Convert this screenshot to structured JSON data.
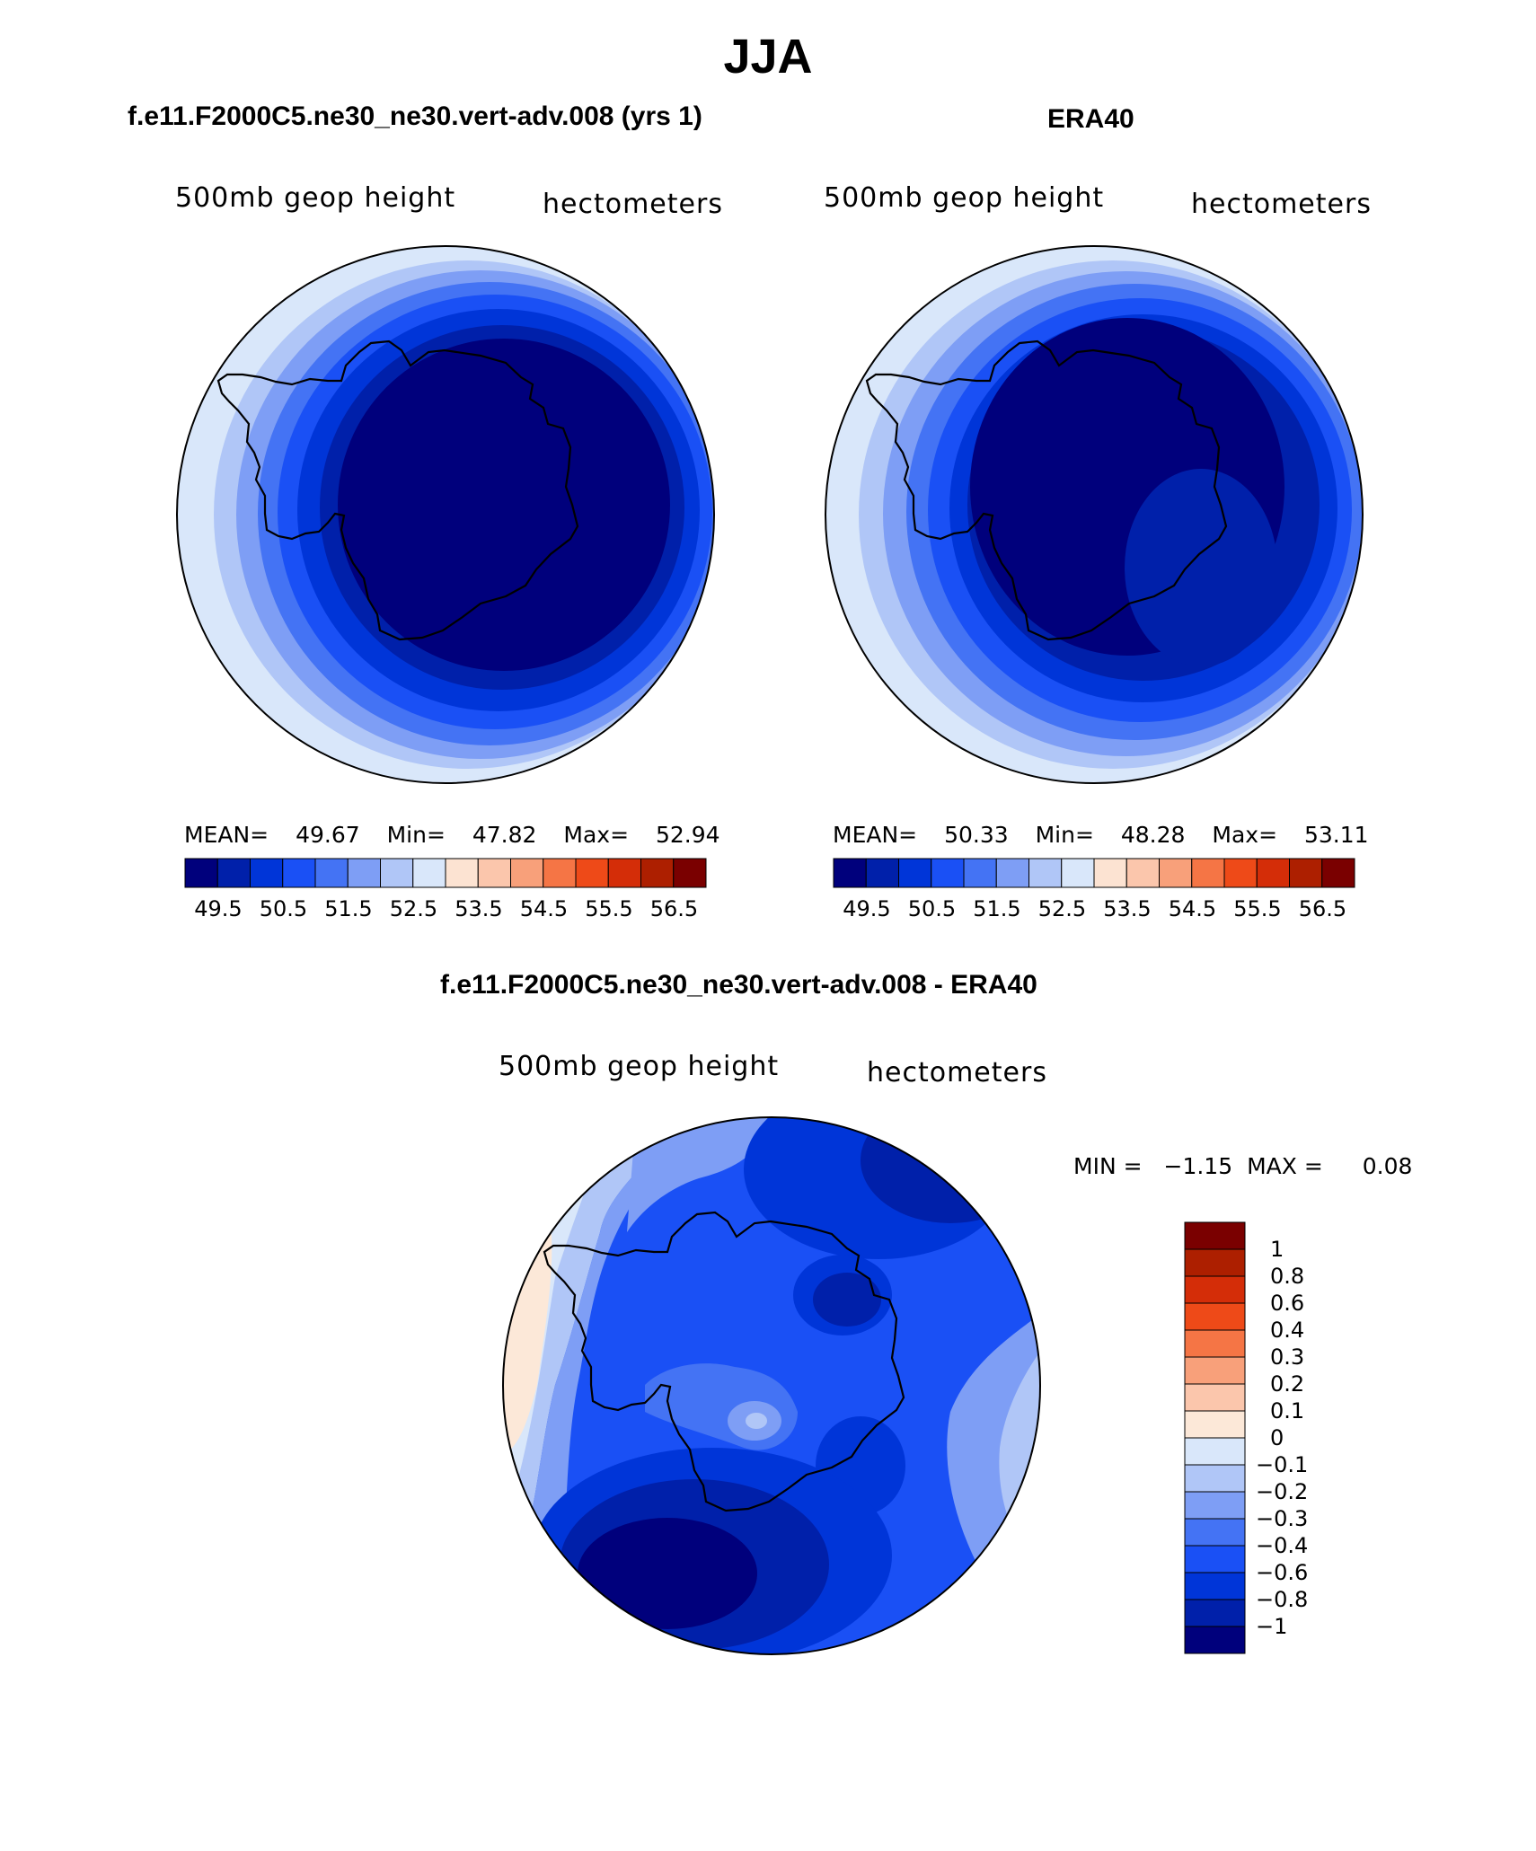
{
  "title": "JJA",
  "colors": {
    "abs": [
      "#00007c",
      "#0020aa",
      "#0035d8",
      "#1a50f5",
      "#4473f4",
      "#7e9ef5",
      "#b0c6f7",
      "#d9e7fa",
      "#fce3d2",
      "#fbc6ac",
      "#f8a07a",
      "#f57545",
      "#ee4a18",
      "#d42d08",
      "#ad1f00",
      "#7a0000"
    ],
    "diff": [
      "#00007c",
      "#0020aa",
      "#0035d8",
      "#1a50f5",
      "#4473f4",
      "#7e9ef5",
      "#b0c6f7",
      "#d9e7fa",
      "#fce8d8",
      "#fbc6ac",
      "#f8a07a",
      "#f57545",
      "#ee4a18",
      "#d42d08",
      "#ad1f00",
      "#7a0000"
    ]
  },
  "panels": [
    {
      "title": "f.e11.F2000C5.ne30_ne30.vert-adv.008 (yrs 1)",
      "left_label": "500mb geop height",
      "right_label": "hectometers",
      "stats": {
        "mean_label": "MEAN=",
        "mean": "49.67",
        "min_label": "Min=",
        "min": "47.82",
        "max_label": "Max=",
        "max": "52.94"
      },
      "ticks": [
        "49.5",
        "50.5",
        "51.5",
        "52.5",
        "53.5",
        "54.5",
        "55.5",
        "56.5"
      ]
    },
    {
      "title": "ERA40",
      "left_label": "500mb geop height",
      "right_label": "hectometers",
      "stats": {
        "mean_label": "MEAN=",
        "mean": "50.33",
        "min_label": "Min=",
        "min": "48.28",
        "max_label": "Max=",
        "max": "53.11"
      },
      "ticks": [
        "49.5",
        "50.5",
        "51.5",
        "52.5",
        "53.5",
        "54.5",
        "55.5",
        "56.5"
      ]
    }
  ],
  "diff_panel": {
    "title": "f.e11.F2000C5.ne30_ne30.vert-adv.008 - ERA40",
    "left_label": "500mb geop height",
    "right_label": "hectometers",
    "stats": {
      "min_label": "MIN =",
      "min": "−1.15",
      "max_label": "MAX =",
      "max": "0.08"
    },
    "ticks": [
      "1",
      "0.8",
      "0.6",
      "0.4",
      "0.3",
      "0.2",
      "0.1",
      "0",
      "−0.1",
      "−0.2",
      "−0.3",
      "−0.4",
      "−0.6",
      "−0.8",
      "−1"
    ]
  }
}
